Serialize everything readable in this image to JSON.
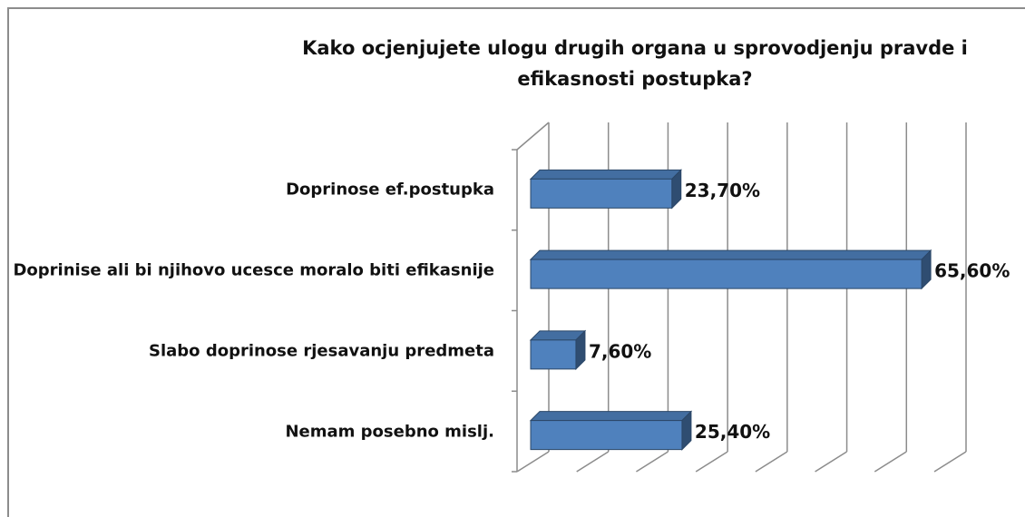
{
  "chart_data": {
    "type": "bar",
    "orientation": "horizontal",
    "title": "Kako ocjenjujete ulogu drugih organa u sprovodjenju pravde i efikasnosti postupka?",
    "categories": [
      "Doprinose ef.postupka",
      "Doprinise ali bi njihovo ucesce moralo biti efikasnije",
      "Slabo doprinose rjesavanju predmeta",
      "Nemam posebno mislj."
    ],
    "values": [
      23.7,
      65.6,
      7.6,
      25.4
    ],
    "value_labels": [
      "23,70%",
      "65,60%",
      "7,60%",
      "25,40%"
    ],
    "color": "#4f81bd",
    "xlim": [
      0,
      70
    ],
    "xticks": [
      0,
      10,
      20,
      30,
      40,
      50,
      60,
      70
    ],
    "grid": true
  }
}
